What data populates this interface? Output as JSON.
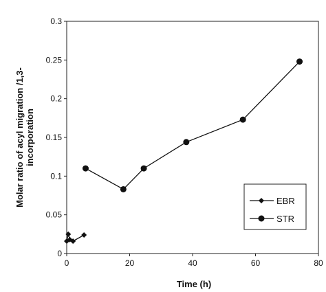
{
  "chart_data": {
    "type": "line",
    "title": "",
    "xlabel": "Time (h)",
    "ylabel_lines": [
      "Molar ratio of acyl migration /1,3-",
      "incorporation"
    ],
    "xlim": [
      0,
      80
    ],
    "ylim": [
      0,
      0.3
    ],
    "x_ticks": [
      "0",
      "20",
      "40",
      "60",
      "80"
    ],
    "y_ticks": [
      "0",
      "0.05",
      "0.1",
      "0.15",
      "0.2",
      "0.25",
      "0.3"
    ],
    "grid": false,
    "legend_position": "right",
    "series": [
      {
        "name": "EBR",
        "marker": "diamond",
        "points": [
          [
            0,
            0.016
          ],
          [
            0.5,
            0.025
          ],
          [
            1,
            0.018
          ],
          [
            2,
            0.016
          ],
          [
            5.5,
            0.024
          ]
        ]
      },
      {
        "name": "STR",
        "marker": "circle",
        "points": [
          [
            6,
            0.11
          ],
          [
            18,
            0.083
          ],
          [
            24.5,
            0.11
          ],
          [
            38,
            0.144
          ],
          [
            56,
            0.173
          ],
          [
            74,
            0.248
          ]
        ]
      }
    ]
  }
}
